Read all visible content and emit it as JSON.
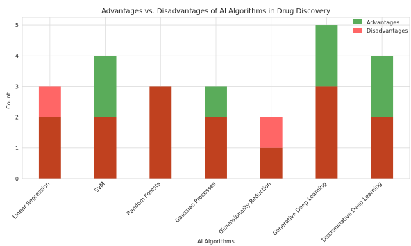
{
  "chart_data": {
    "type": "bar",
    "title": "Advantages vs. Disadvantages of AI Algorithms in Drug Discovery",
    "xlabel": "AI Algorithms",
    "ylabel": "Count",
    "ylim": [
      0,
      5.25
    ],
    "yticks": [
      0,
      1,
      2,
      3,
      4,
      5
    ],
    "grid": true,
    "legend_position": "top-right",
    "overlay": true,
    "categories": [
      "Linear Regression",
      "SVM",
      "Random Forests",
      "Gaussian Processes",
      "Dimensionality Reduction",
      "Generative Deep Learning",
      "Discriminative Deep Learning"
    ],
    "series": [
      {
        "name": "Advantages",
        "color": "#5aac5a",
        "values": [
          2,
          4,
          3,
          3,
          1,
          5,
          4
        ]
      },
      {
        "name": "Disadvantages",
        "color": "#ff6666",
        "values": [
          3,
          2,
          3,
          2,
          2,
          3,
          2
        ]
      }
    ],
    "overlap_color": "#c0411f"
  }
}
